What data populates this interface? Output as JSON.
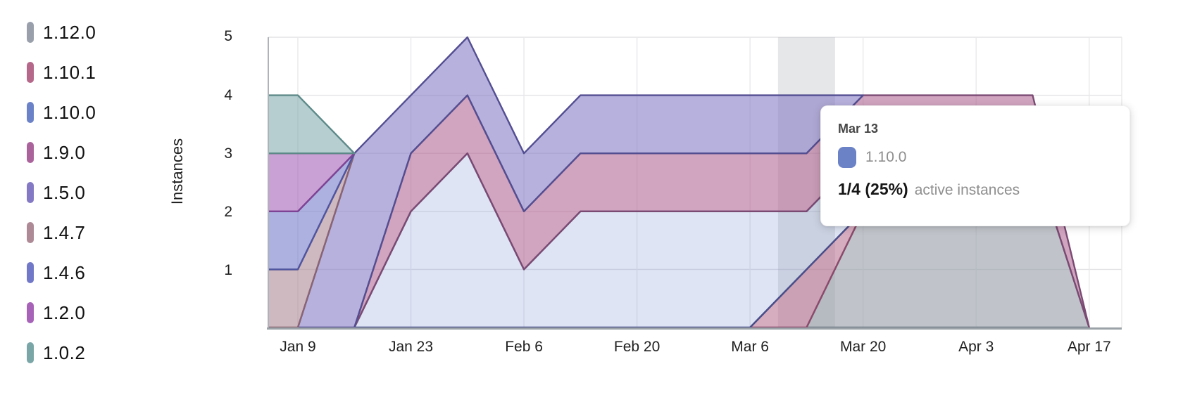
{
  "y_axis": {
    "label": "Instances",
    "ticks": [
      "5",
      "4",
      "3",
      "2",
      "1"
    ]
  },
  "x_axis": {
    "ticks": [
      "Jan 9",
      "Jan 23",
      "Feb 6",
      "Feb 20",
      "Mar 6",
      "Mar 20",
      "Apr 3",
      "Apr 17"
    ]
  },
  "tooltip": {
    "date": "Mar 13",
    "series": "1.10.0",
    "marker_color": "#6b82c6",
    "value": "1/4 (25%)",
    "suffix": "active instances"
  },
  "chart_data": {
    "type": "area",
    "stacked": true,
    "title": "",
    "xlabel": "",
    "ylabel": "Instances",
    "ylim": [
      0,
      5
    ],
    "grid": true,
    "legend_position": "left",
    "x": [
      "Jan 2",
      "Jan 9",
      "Jan 16",
      "Jan 23",
      "Jan 30",
      "Feb 6",
      "Feb 13",
      "Feb 20",
      "Feb 27",
      "Mar 6",
      "Mar 13",
      "Mar 20",
      "Mar 27",
      "Apr 3",
      "Apr 10",
      "Apr 17"
    ],
    "x_tick_indices": [
      1,
      3,
      5,
      7,
      9,
      11,
      13,
      15
    ],
    "hover_band": {
      "date": "Mar 13",
      "color": "rgba(151,154,160,0.24)"
    },
    "stack_order_note": "series listed bottom-to-top of stack; legend shows same order top-to-bottom",
    "series": [
      {
        "name": "1.12.0",
        "marker_color": "#99a0ab",
        "fill": "rgba(150,156,167,0.60)",
        "stroke": "#717a85",
        "values": [
          0,
          0,
          0,
          0,
          0,
          0,
          0,
          0,
          0,
          0,
          0,
          2,
          3,
          3,
          3,
          0
        ]
      },
      {
        "name": "1.10.1",
        "marker_color": "#b5688a",
        "fill": "rgba(181,104,138,0.55)",
        "stroke": "#8c4a6b",
        "values": [
          0,
          0,
          0,
          0,
          0,
          0,
          0,
          0,
          0,
          0,
          1,
          0,
          0,
          0,
          0,
          0
        ]
      },
      {
        "name": "1.10.0",
        "marker_color": "#6b82c8",
        "fill": "rgba(107,130,200,0.22)",
        "stroke": "#474f8b",
        "values": [
          0,
          0,
          0,
          2,
          3,
          1,
          2,
          2,
          2,
          2,
          1,
          1,
          0,
          0,
          0,
          0
        ]
      },
      {
        "name": "1.9.0",
        "marker_color": "#ab639c",
        "fill": "rgba(176,99,144,0.58)",
        "stroke": "#7a4a73",
        "values": [
          0,
          0,
          0,
          1,
          1,
          1,
          1,
          1,
          1,
          1,
          1,
          1,
          1,
          1,
          1,
          0
        ]
      },
      {
        "name": "1.5.0",
        "marker_color": "#8379c4",
        "fill": "rgba(131,121,196,0.58)",
        "stroke": "#534e91",
        "values": [
          0,
          0,
          3,
          1,
          1,
          1,
          1,
          1,
          1,
          1,
          1,
          0,
          0,
          0,
          0,
          0
        ]
      },
      {
        "name": "1.4.7",
        "marker_color": "#ad8a96",
        "fill": "rgba(173,138,150,0.60)",
        "stroke": "#8a6472",
        "values": [
          1,
          1,
          0,
          0,
          0,
          0,
          0,
          0,
          0,
          0,
          0,
          0,
          0,
          0,
          0,
          0
        ]
      },
      {
        "name": "1.4.6",
        "marker_color": "#7278c8",
        "fill": "rgba(114,120,200,0.58)",
        "stroke": "#4f55a0",
        "values": [
          1,
          1,
          0,
          0,
          0,
          0,
          0,
          0,
          0,
          0,
          0,
          0,
          0,
          0,
          0,
          0
        ]
      },
      {
        "name": "1.2.0",
        "marker_color": "#a763b8",
        "fill": "rgba(167,99,184,0.60)",
        "stroke": "#7e4394",
        "values": [
          1,
          1,
          0,
          0,
          0,
          0,
          0,
          0,
          0,
          0,
          0,
          0,
          0,
          0,
          0,
          0
        ]
      },
      {
        "name": "1.0.2",
        "marker_color": "#7aa6a8",
        "fill": "rgba(122,166,168,0.55)",
        "stroke": "#5d8a89",
        "values": [
          1,
          1,
          0,
          0,
          0,
          0,
          0,
          0,
          0,
          0,
          0,
          0,
          0,
          0,
          0,
          0
        ]
      }
    ]
  }
}
